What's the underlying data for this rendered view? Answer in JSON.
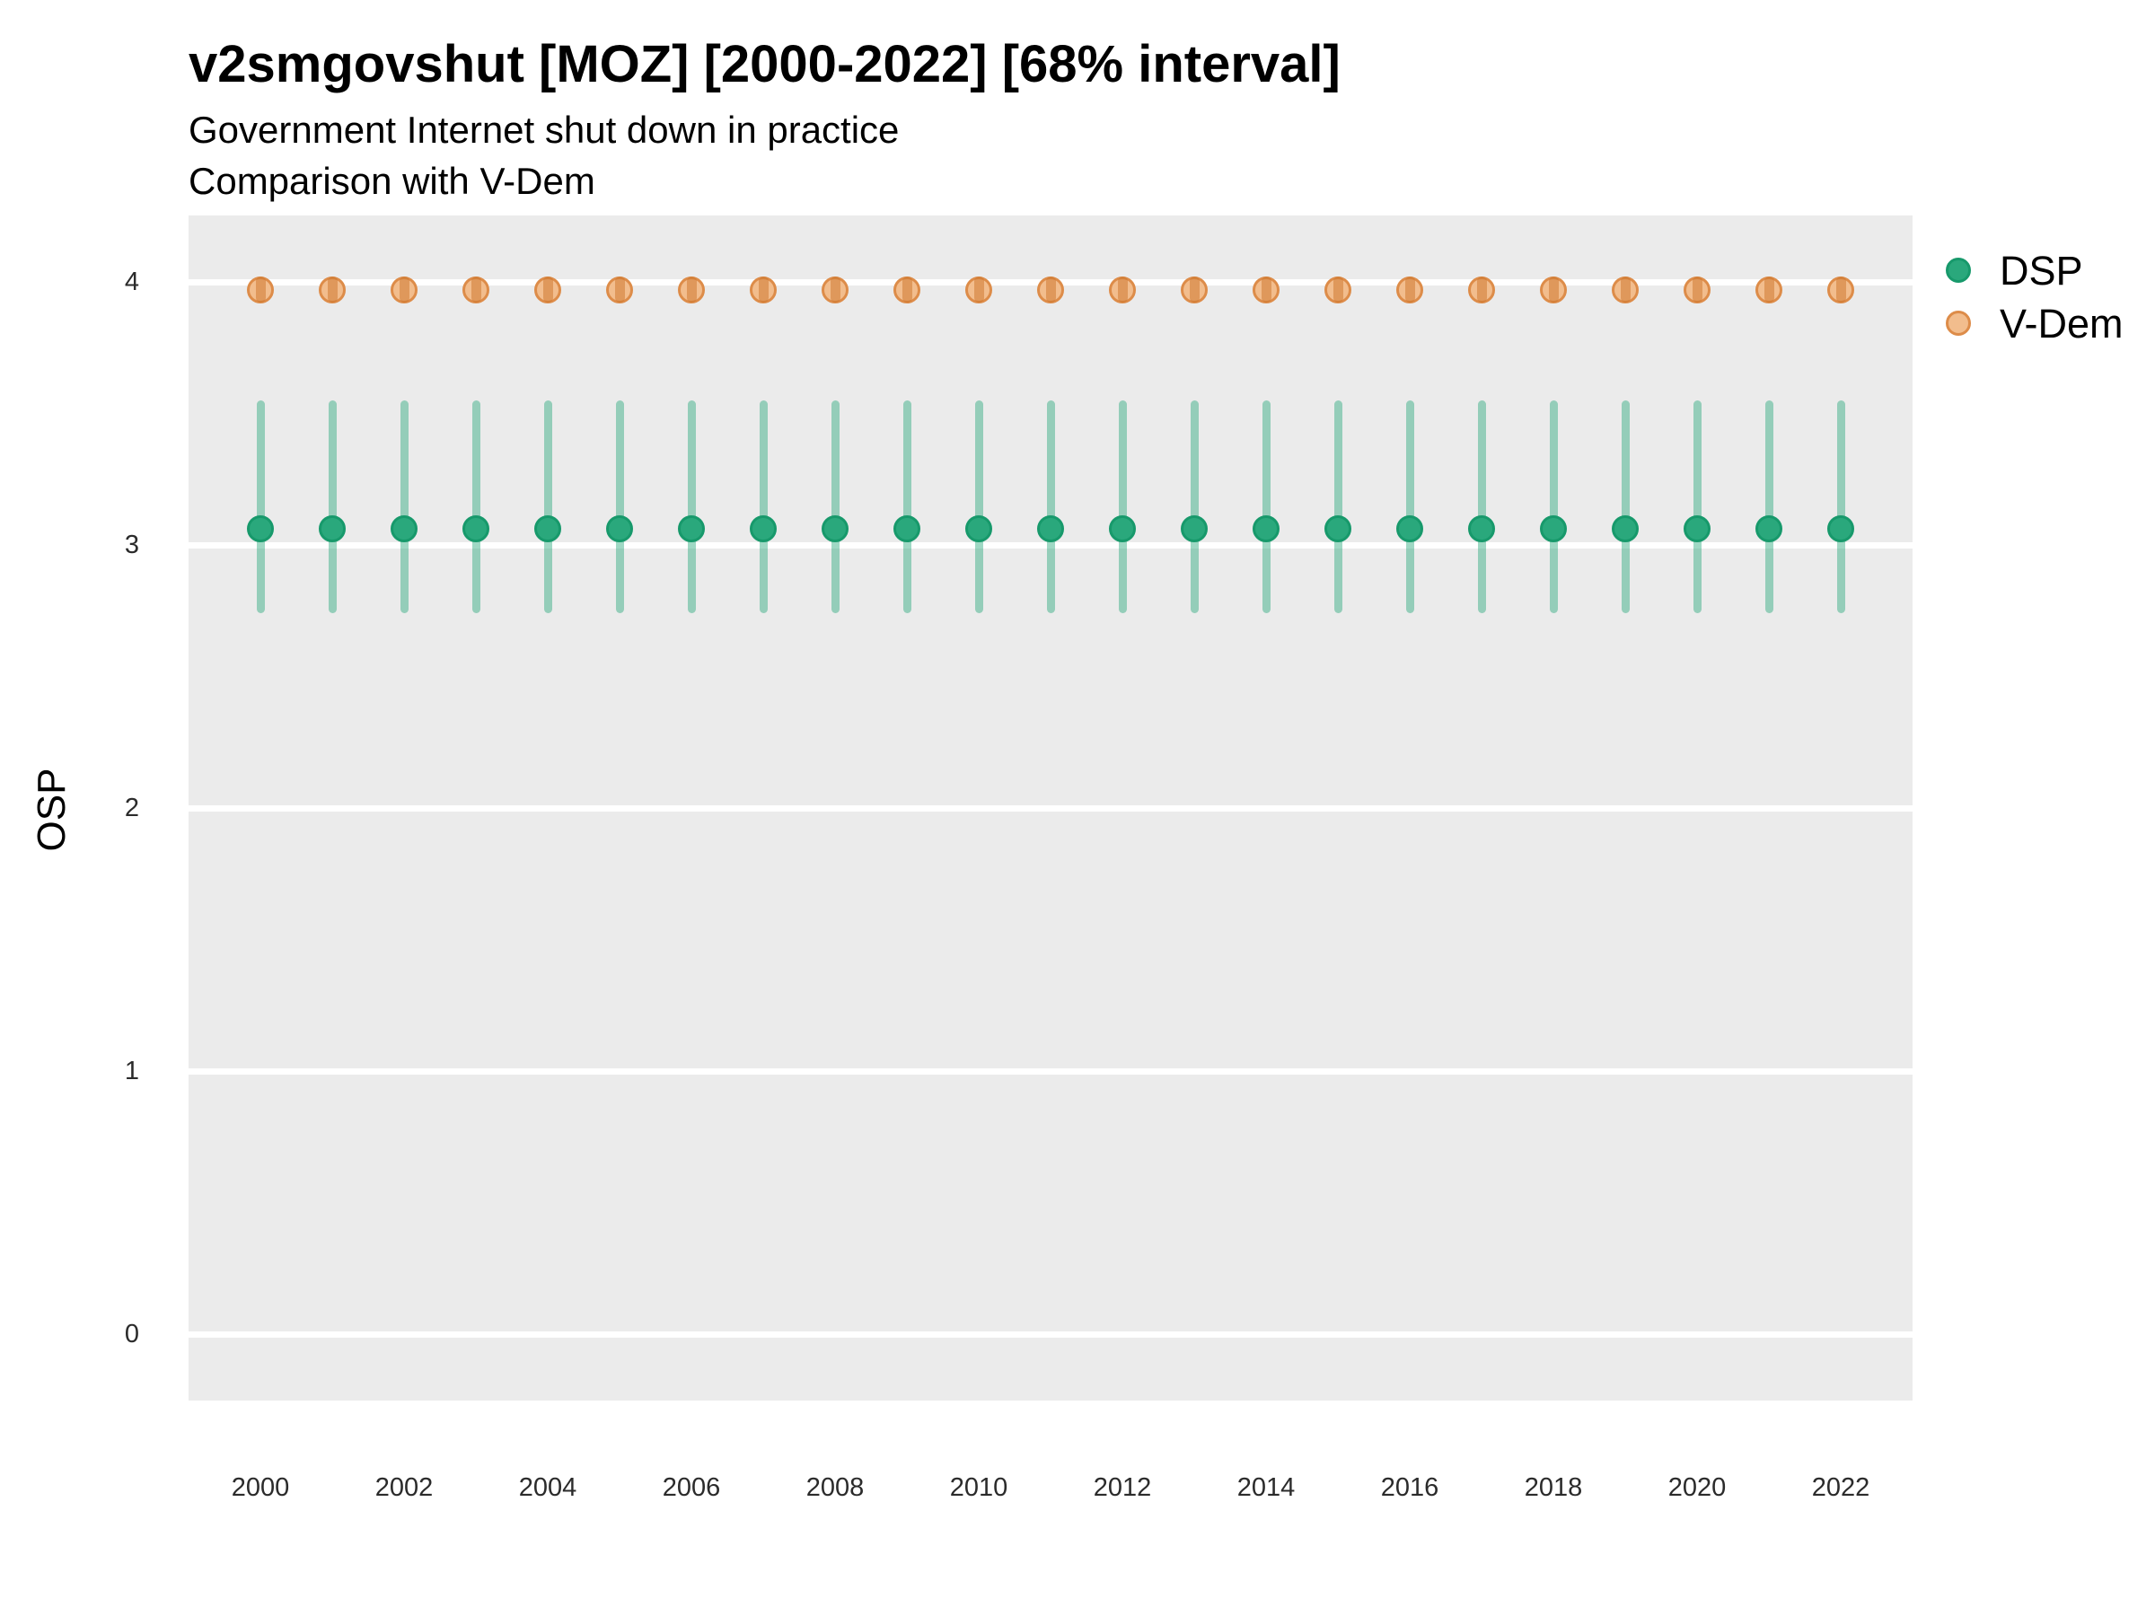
{
  "header": {
    "title": "v2smgovshut [MOZ] [2000-2022] [68% interval]",
    "subtitle_line1": "Government Internet shut down in practice",
    "subtitle_line2": "Comparison with V-Dem"
  },
  "colors": {
    "panel_background": "#ebebeb",
    "gridline": "#ffffff",
    "dsp_fill": "#2aa87c",
    "dsp_stroke": "#17996b",
    "dsp_interval": "rgba(42,168,124,0.45)",
    "vdem_fill": "#f2bd8d",
    "vdem_stroke": "#dd8c49",
    "vdem_interval": "rgba(204,116,42,0.5)"
  },
  "legend": {
    "items": [
      {
        "label": "DSP",
        "fill": "#2aa87c",
        "stroke": "#17996b"
      },
      {
        "label": "V-Dem",
        "fill": "#f2bd8d",
        "stroke": "#dd8c49"
      }
    ]
  },
  "chart_data": {
    "type": "scatter",
    "title": "v2smgovshut [MOZ] [2000-2022] [68% interval]",
    "subtitle": [
      "Government Internet shut down in practice",
      "Comparison with V-Dem"
    ],
    "xlabel": "",
    "ylabel": "OSP",
    "interval_level": "68%",
    "x": [
      2000,
      2001,
      2002,
      2003,
      2004,
      2005,
      2006,
      2007,
      2008,
      2009,
      2010,
      2011,
      2012,
      2013,
      2014,
      2015,
      2016,
      2017,
      2018,
      2019,
      2020,
      2021,
      2022
    ],
    "xticks": [
      2000,
      2002,
      2004,
      2006,
      2008,
      2010,
      2012,
      2014,
      2016,
      2018,
      2020,
      2022
    ],
    "yticks": [
      0,
      1,
      2,
      3,
      4
    ],
    "ylim": [
      -0.25,
      4.25
    ],
    "grid": "major-horizontal-only",
    "legend_position": "right-top",
    "series": [
      {
        "name": "DSP",
        "values": [
          3.06,
          3.06,
          3.06,
          3.06,
          3.06,
          3.06,
          3.06,
          3.06,
          3.06,
          3.06,
          3.06,
          3.06,
          3.06,
          3.06,
          3.06,
          3.06,
          3.06,
          3.06,
          3.06,
          3.06,
          3.06,
          3.06,
          3.06
        ],
        "lower": [
          2.74,
          2.74,
          2.74,
          2.74,
          2.74,
          2.74,
          2.74,
          2.74,
          2.74,
          2.74,
          2.74,
          2.74,
          2.74,
          2.74,
          2.74,
          2.74,
          2.74,
          2.74,
          2.74,
          2.74,
          2.74,
          2.74,
          2.74
        ],
        "upper": [
          3.55,
          3.55,
          3.55,
          3.55,
          3.55,
          3.55,
          3.55,
          3.55,
          3.55,
          3.55,
          3.55,
          3.55,
          3.55,
          3.55,
          3.55,
          3.55,
          3.55,
          3.55,
          3.55,
          3.55,
          3.55,
          3.55,
          3.55
        ]
      },
      {
        "name": "V-Dem",
        "values": [
          3.97,
          3.97,
          3.97,
          3.97,
          3.97,
          3.97,
          3.97,
          3.97,
          3.97,
          3.97,
          3.97,
          3.97,
          3.97,
          3.97,
          3.97,
          3.97,
          3.97,
          3.97,
          3.97,
          3.97,
          3.97,
          3.97,
          3.97
        ],
        "lower": [
          3.92,
          3.92,
          3.92,
          3.92,
          3.92,
          3.92,
          3.92,
          3.92,
          3.92,
          3.92,
          3.92,
          3.92,
          3.92,
          3.92,
          3.92,
          3.92,
          3.92,
          3.92,
          3.92,
          3.92,
          3.92,
          3.92,
          3.92
        ],
        "upper": [
          4.02,
          4.02,
          4.02,
          4.02,
          4.02,
          4.02,
          4.02,
          4.02,
          4.02,
          4.02,
          4.02,
          4.02,
          4.02,
          4.02,
          4.02,
          4.02,
          4.02,
          4.02,
          4.02,
          4.02,
          4.02,
          4.02,
          4.02
        ]
      }
    ]
  }
}
